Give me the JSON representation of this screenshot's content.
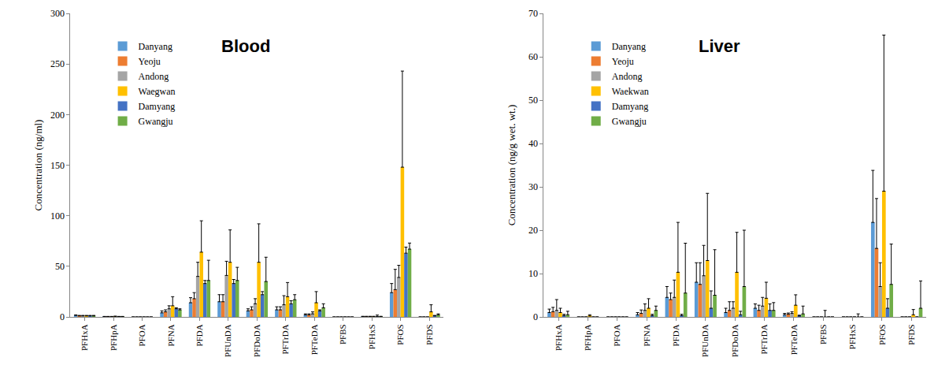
{
  "chart_data": [
    {
      "type": "bar",
      "title": "Blood",
      "y_label": "Concentration (ng/ml)",
      "categories": [
        "PFHxA",
        "PFHpA",
        "PFOA",
        "PFNA",
        "PFDA",
        "PFUnDA",
        "PFDoDA",
        "PFTrDA",
        "PFTeDA",
        "PFBS",
        "PFHxS",
        "PFOS",
        "PFDS"
      ],
      "series": [
        {
          "name": "Danyang",
          "color": "#5b9bd5",
          "values": [
            1.5,
            0.3,
            0,
            4,
            14,
            15,
            6,
            7,
            2,
            0,
            0.3,
            24,
            0
          ],
          "errors": [
            0.5,
            0.2,
            0,
            2,
            5,
            7,
            2,
            3,
            1,
            0,
            0.3,
            9,
            0
          ]
        },
        {
          "name": "Yeoju",
          "color": "#ed7d31",
          "values": [
            1,
            0.3,
            0,
            5,
            18,
            15,
            7,
            7,
            2,
            0,
            0.3,
            27,
            0
          ],
          "errors": [
            0.5,
            0.2,
            0,
            2,
            6,
            7,
            3,
            3,
            1,
            0,
            0.3,
            20,
            0
          ]
        },
        {
          "name": "Andong",
          "color": "#a5a5a5",
          "values": [
            1,
            0.3,
            0,
            8,
            40,
            41,
            13,
            12,
            3,
            0,
            0.3,
            39,
            0
          ],
          "errors": [
            0.5,
            0.2,
            0,
            3,
            14,
            14,
            5,
            9,
            2,
            0,
            0.3,
            12,
            0
          ]
        },
        {
          "name": "Waegwan",
          "color": "#ffc000",
          "values": [
            1,
            0.3,
            0,
            11,
            64,
            54,
            54,
            20,
            14,
            0,
            0.3,
            148,
            5
          ],
          "errors": [
            0.5,
            0.5,
            0,
            9,
            31,
            32,
            38,
            14,
            11,
            0,
            0.3,
            95,
            7
          ]
        },
        {
          "name": "Damyang",
          "color": "#4472c4",
          "values": [
            1,
            0.3,
            0,
            8,
            33,
            33,
            22,
            13,
            6,
            0,
            0.3,
            63,
            1
          ],
          "errors": [
            0.5,
            0.2,
            0,
            1,
            3,
            4,
            3,
            3,
            1,
            0,
            1.5,
            6,
            0.5
          ]
        },
        {
          "name": "Gwangju",
          "color": "#70ad47",
          "values": [
            1,
            0.3,
            0,
            7,
            36,
            36,
            35,
            17,
            9,
            0,
            0.3,
            67,
            2
          ],
          "errors": [
            0.5,
            0.2,
            0,
            1,
            20,
            13,
            24,
            5,
            4,
            0,
            0.3,
            6,
            1
          ]
        }
      ],
      "ylim": [
        0,
        300
      ],
      "yticks": [
        0,
        50,
        100,
        150,
        200,
        250,
        300
      ],
      "legend": "upper left"
    },
    {
      "type": "bar",
      "title": "Liver",
      "y_label": "Concentration (ng/g wet. wt.)",
      "categories": [
        "PFHxA",
        "PFHpA",
        "PFOA",
        "PFNA",
        "PFDA",
        "PFUnDA",
        "PFDoDA",
        "PFTrDA",
        "PFTeDA",
        "PFBS",
        "PFHxS",
        "PFOS",
        "PFDS"
      ],
      "series": [
        {
          "name": "Danyang",
          "color": "#5b9bd5",
          "values": [
            1,
            0,
            0,
            0.5,
            4.5,
            8,
            1,
            2,
            0.5,
            0,
            0,
            21.8,
            0
          ],
          "errors": [
            0.8,
            0,
            0,
            0.5,
            2.5,
            4.5,
            1,
            1,
            0.3,
            0,
            0,
            12,
            0
          ]
        },
        {
          "name": "Yeoju",
          "color": "#ed7d31",
          "values": [
            1.2,
            0,
            0,
            0.8,
            4,
            7.5,
            1.5,
            1.5,
            0.6,
            0,
            0,
            15.8,
            0
          ],
          "errors": [
            1,
            0,
            0,
            0.8,
            1.5,
            5,
            2,
            1.2,
            0.3,
            0,
            0,
            11.5,
            0
          ]
        },
        {
          "name": "Andong",
          "color": "#a5a5a5",
          "values": [
            1.5,
            0,
            0,
            1.5,
            4.5,
            9.5,
            2,
            2.5,
            0.8,
            0,
            0,
            7,
            0
          ],
          "errors": [
            2.5,
            0,
            0,
            1.5,
            4,
            7,
            1.5,
            2,
            0.4,
            0,
            0,
            5.5,
            0
          ]
        },
        {
          "name": "Waekwan",
          "color": "#ffc000",
          "values": [
            1,
            0.2,
            0,
            2,
            10.3,
            13,
            10.3,
            4.3,
            2.7,
            0,
            0,
            29,
            0.5
          ],
          "errors": [
            1,
            0.3,
            0,
            2.2,
            11.5,
            15.5,
            9.2,
            3.7,
            2.4,
            1.5,
            0,
            36,
            1.2
          ]
        },
        {
          "name": "Damyang",
          "color": "#4472c4",
          "values": [
            0.3,
            0,
            0,
            0.3,
            0.3,
            2,
            0.5,
            1.5,
            0.2,
            0,
            0,
            2,
            0
          ],
          "errors": [
            0.3,
            0,
            0,
            0.3,
            0.3,
            4,
            0.8,
            1.5,
            0.2,
            0,
            0.7,
            2.2,
            0
          ]
        },
        {
          "name": "Gwangju",
          "color": "#70ad47",
          "values": [
            0.5,
            0,
            0,
            1.5,
            5.5,
            5,
            7,
            1.5,
            0.7,
            0,
            0,
            7.5,
            2
          ],
          "errors": [
            0.8,
            0,
            0,
            1,
            11.5,
            10.5,
            13,
            1.8,
            1.8,
            0,
            0,
            9.3,
            6.3
          ]
        }
      ],
      "ylim": [
        0,
        70
      ],
      "yticks": [
        0,
        10,
        20,
        30,
        40,
        50,
        60,
        70
      ],
      "legend": "upper left"
    }
  ]
}
